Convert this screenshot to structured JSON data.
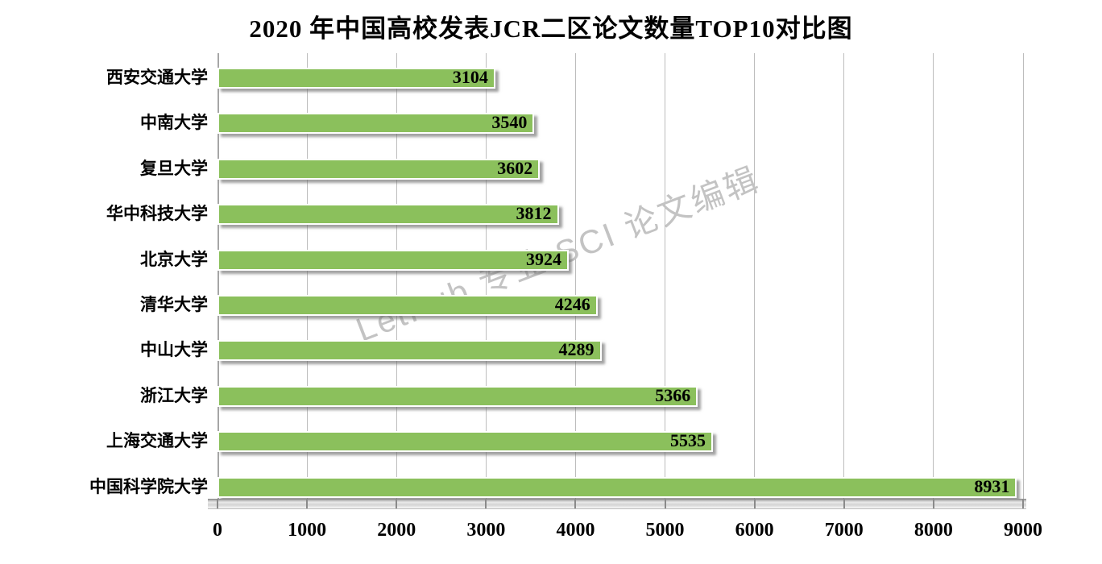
{
  "title": "2020 年中国高校发表JCR二区论文数量TOP10对比图",
  "watermark": "LetPub 专业 SCI 论文编辑",
  "colors": {
    "bar": "#8bc05c",
    "bar_border": "#ffffff",
    "gridline": "#bdbdbd",
    "axis_line": "#a6a6a6",
    "watermark": "#c3c3c3",
    "text": "#000000",
    "background": "#ffffff"
  },
  "chart_data": {
    "type": "bar",
    "orientation": "horizontal",
    "title": "2020 年中国高校发表JCR二区论文数量TOP10对比图",
    "categories": [
      "西安交通大学",
      "中南大学",
      "复旦大学",
      "华中科技大学",
      "北京大学",
      "清华大学",
      "中山大学",
      "浙江大学",
      "上海交通大学",
      "中国科学院大学"
    ],
    "values": [
      3104,
      3540,
      3602,
      3812,
      3924,
      4246,
      4289,
      5366,
      5535,
      8931
    ],
    "xlabel": "",
    "ylabel": "",
    "xlim": [
      0,
      9000
    ],
    "xticks": [
      0,
      1000,
      2000,
      3000,
      4000,
      5000,
      6000,
      7000,
      8000,
      9000
    ],
    "grid": "vertical-major",
    "legend": "none",
    "value_label_position": "inside-end",
    "order": "smallest-at-top"
  }
}
